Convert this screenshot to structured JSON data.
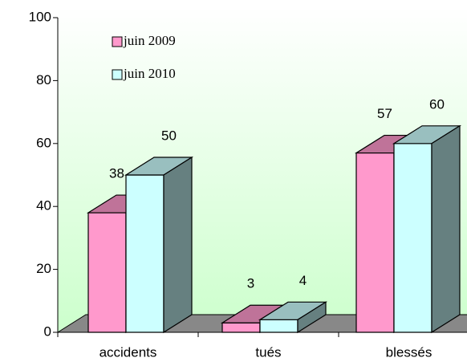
{
  "chart_data": {
    "type": "bar3d",
    "categories": [
      "accidents",
      "tués",
      "blessés"
    ],
    "series": [
      {
        "name": "juin 2009",
        "color": "#ff99cc",
        "values": [
          38,
          3,
          57
        ]
      },
      {
        "name": "juin 2010",
        "color": "#ccffff",
        "values": [
          50,
          4,
          60
        ]
      }
    ],
    "ylim": [
      0,
      100
    ],
    "yticks": [
      0,
      20,
      40,
      60,
      80,
      100
    ],
    "grid": false,
    "legend": "top-left"
  }
}
